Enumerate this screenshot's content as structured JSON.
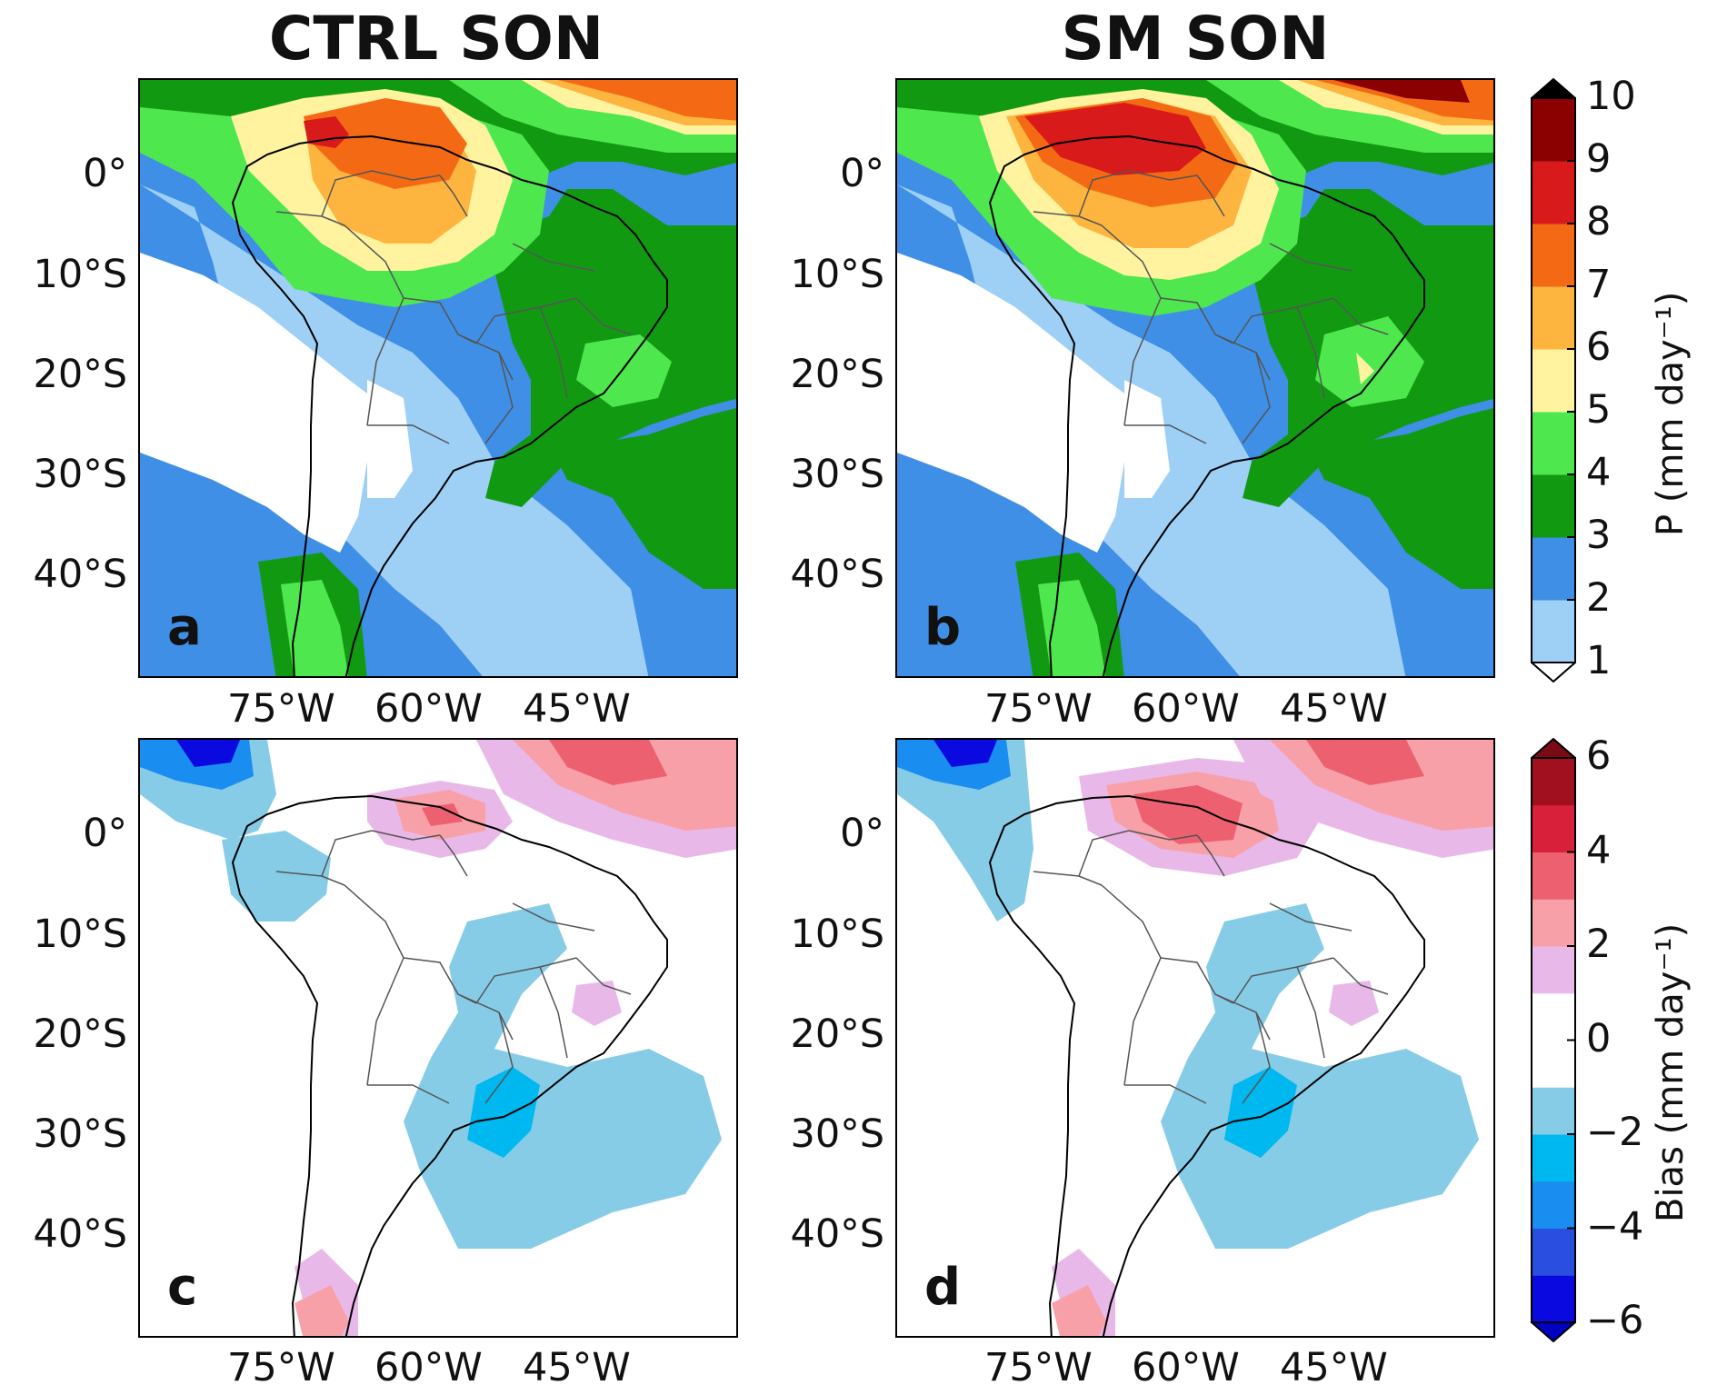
{
  "titles": {
    "left": "CTRL SON",
    "right": "SM SON"
  },
  "y_ticks": [
    "0°",
    "10°S",
    "20°S",
    "30°S",
    "40°S"
  ],
  "x_ticks": [
    "75°W",
    "60°W",
    "45°W"
  ],
  "panels": [
    {
      "id": "a",
      "label": "a",
      "field": "precip",
      "case": "CTRL"
    },
    {
      "id": "b",
      "label": "b",
      "field": "precip",
      "case": "SM"
    },
    {
      "id": "c",
      "label": "c",
      "field": "bias",
      "case": "CTRL"
    },
    {
      "id": "d",
      "label": "d",
      "field": "bias",
      "case": "SM"
    }
  ],
  "colorbars": {
    "precip": {
      "title": "P (mm day⁻¹)",
      "ticks": [
        "1",
        "2",
        "3",
        "4",
        "5",
        "6",
        "7",
        "8",
        "9",
        "10"
      ],
      "colors": [
        "#9ecff5",
        "#3f8fe6",
        "#119a11",
        "#4ee84e",
        "#fff3a0",
        "#fdb540",
        "#f46a14",
        "#d91a1a",
        "#8b0000"
      ],
      "over_color": "#000000",
      "under_color": "#ffffff"
    },
    "bias": {
      "title": "Bias (mm day⁻¹)",
      "ticks": [
        "6",
        "4",
        "2",
        "0",
        "−2",
        "−4",
        "−6"
      ],
      "colors": [
        "#0a0ae0",
        "#2a4fe0",
        "#1a8df0",
        "#00b8f0",
        "#86cce6",
        "#ffffff",
        "#ffffff",
        "#e8b8e8",
        "#f8a0a8",
        "#ec6070",
        "#d8203a",
        "#a0101e"
      ],
      "over_color": "#7a0a14",
      "under_color": "#0000c0"
    }
  }
}
